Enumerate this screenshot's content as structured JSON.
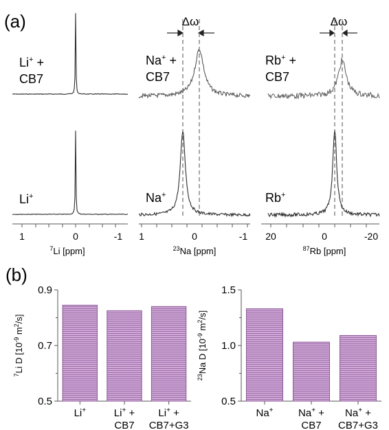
{
  "panel_a_label": "(a)",
  "panel_b_label": "(b)",
  "delta_omega": "Δω",
  "colors": {
    "trace": "#2b2b2b",
    "dashed": "#777777",
    "bar_fill": "#cfa6d6",
    "bar_stripe": "#9c6fa8",
    "bar_edge": "#8a5a96",
    "axis": "#555555"
  },
  "spectra": [
    {
      "xlabel_sup": "7",
      "xlabel_main": "Li [ppm]",
      "xticks": [
        "1",
        "0",
        "-1"
      ],
      "upper_label_l1": "Li",
      "upper_label_l1_sup": "+",
      "upper_label_l1_tail": " +",
      "upper_label_l2": "CB7",
      "lower_label": "Li",
      "lower_label_sup": "+"
    },
    {
      "xlabel_sup": "23",
      "xlabel_main": "Na [ppm]",
      "xticks": [
        "1",
        "0",
        "-1"
      ],
      "upper_label_l1": "Na",
      "upper_label_l1_sup": "+",
      "upper_label_l1_tail": " +",
      "upper_label_l2": "CB7",
      "lower_label": "Na",
      "lower_label_sup": "+"
    },
    {
      "xlabel_sup": "87",
      "xlabel_main": "Rb [ppm]",
      "xticks": [
        "20",
        "0",
        "-20"
      ],
      "upper_label_l1": "Rb",
      "upper_label_l1_sup": "+",
      "upper_label_l1_tail": " +",
      "upper_label_l2": "CB7",
      "lower_label": "Rb",
      "lower_label_sup": "+"
    }
  ],
  "chart_data": [
    {
      "type": "bar",
      "ylabel_pre": "7",
      "ylabel_main": "Li D [10",
      "ylabel_exp": "-9",
      "ylabel_tail": " m",
      "ylabel_exp2": "2",
      "ylabel_end": "/s]",
      "ylim": [
        0.5,
        0.9
      ],
      "yticks": [
        "0.5",
        "0.7",
        "0.9"
      ],
      "categories": [
        {
          "l1": "Li",
          "l1_sup": "+",
          "l1_tail": "",
          "l2": ""
        },
        {
          "l1": "Li",
          "l1_sup": "+",
          "l1_tail": " +",
          "l2": "CB7"
        },
        {
          "l1": "Li",
          "l1_sup": "+",
          "l1_tail": " +",
          "l2": "CB7+G3"
        }
      ],
      "values": [
        0.845,
        0.825,
        0.84
      ]
    },
    {
      "type": "bar",
      "ylabel_pre": "23",
      "ylabel_main": "Na D [10",
      "ylabel_exp": "-9",
      "ylabel_tail": " m",
      "ylabel_exp2": "2",
      "ylabel_end": "/s]",
      "ylim": [
        0.5,
        1.5
      ],
      "yticks": [
        "0.5",
        "1.0",
        "1.5"
      ],
      "categories": [
        {
          "l1": "Na",
          "l1_sup": "+",
          "l1_tail": "",
          "l2": ""
        },
        {
          "l1": "Na",
          "l1_sup": "+",
          "l1_tail": " +",
          "l2": "CB7"
        },
        {
          "l1": "Na",
          "l1_sup": "+",
          "l1_tail": " +",
          "l2": "CB7+G3"
        }
      ],
      "values": [
        1.33,
        1.03,
        1.09
      ]
    }
  ]
}
